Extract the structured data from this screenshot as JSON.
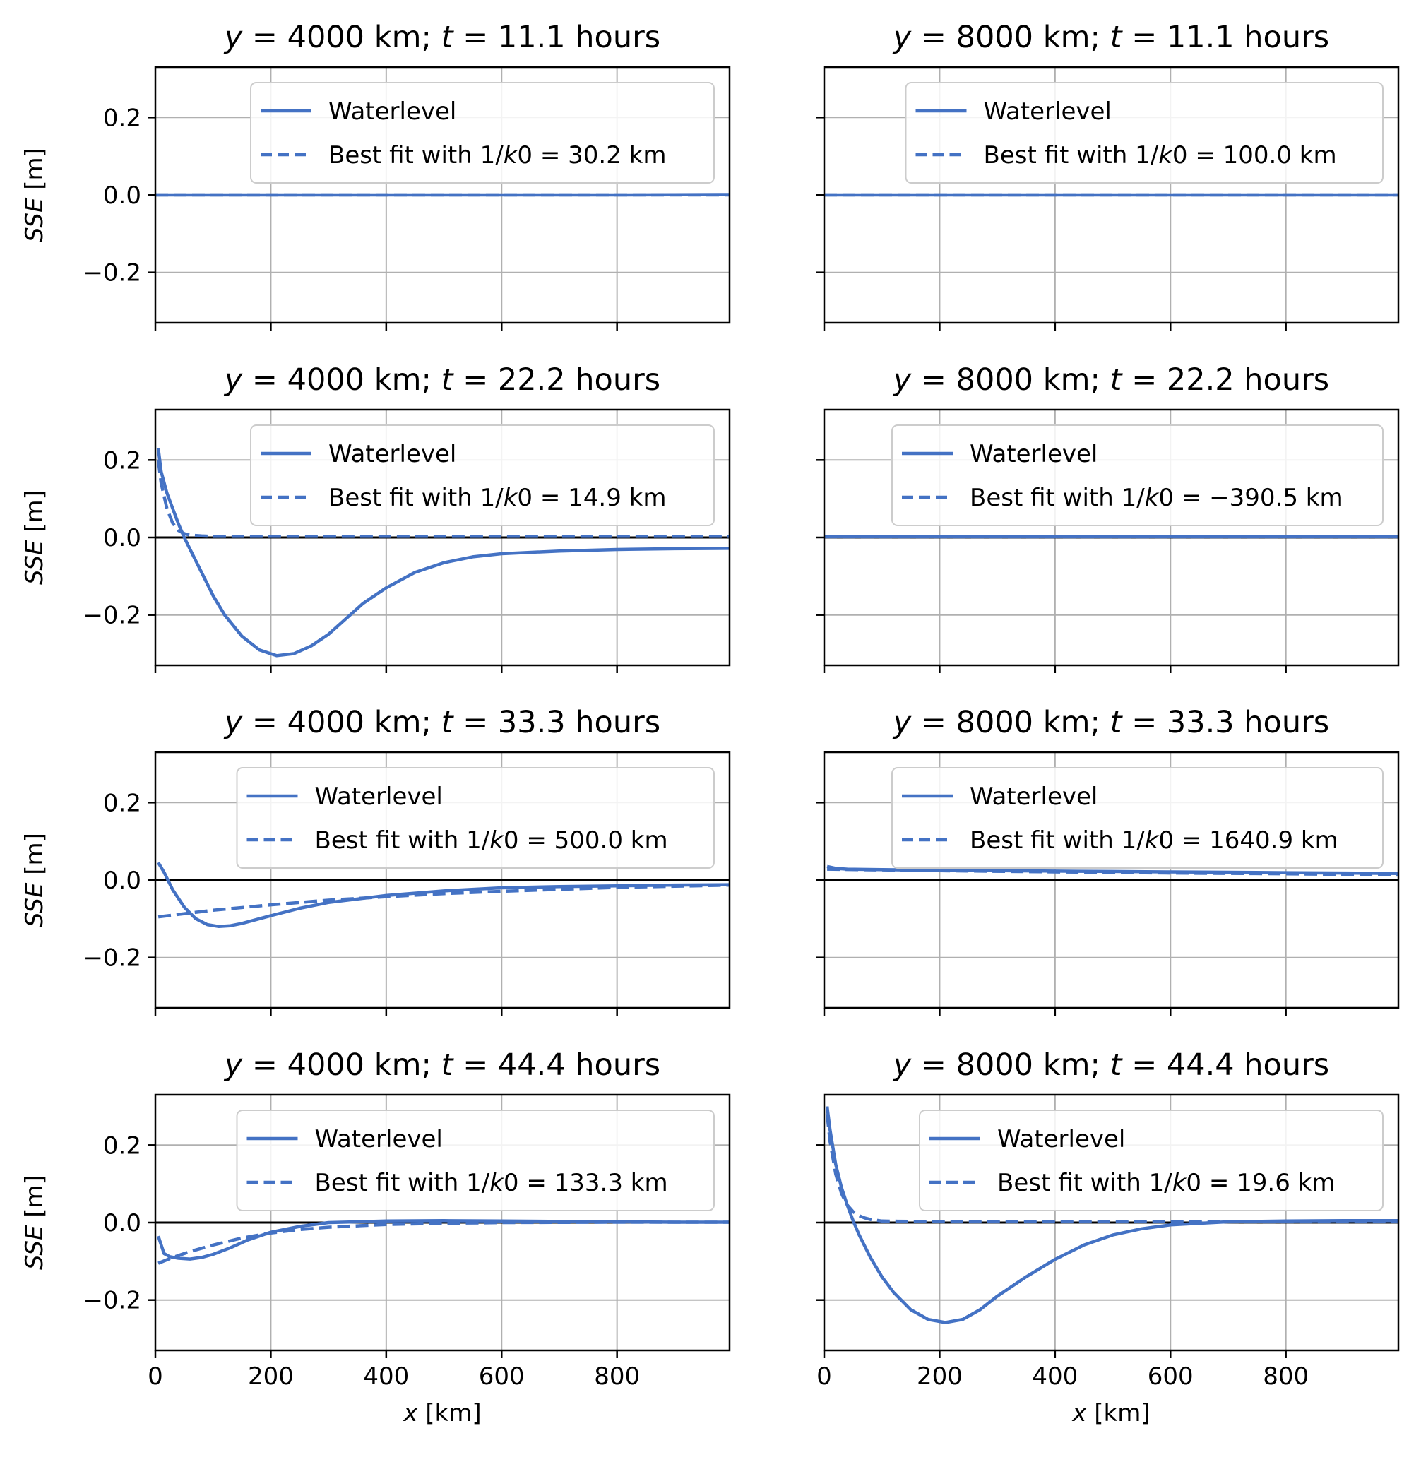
{
  "figure": {
    "xlabel_var": "x",
    "xlabel_unit": "[km]",
    "ylabel_var": "SSE",
    "ylabel_unit": "[m]",
    "line_color": "#4472c4",
    "zero_line_color": "#000000"
  },
  "chart_data": [
    {
      "type": "line",
      "title": "y = 4000 km; t = 11.1 hours",
      "title_parts": [
        "y",
        " = 4000 km; ",
        "t",
        " = 11.1 hours"
      ],
      "xlim": [
        0,
        995
      ],
      "ylim": [
        -0.33,
        0.33
      ],
      "xticks": [
        0,
        200,
        400,
        600,
        800
      ],
      "yticks": [
        0.2,
        0.0,
        -0.2
      ],
      "ytick_labels": [
        "0.2",
        "0.0",
        "−0.2"
      ],
      "grid": true,
      "legend_position": "top-right",
      "show_x_ticklabels": false,
      "show_y_ticklabels": true,
      "series": [
        {
          "name": "Waterlevel",
          "style": "solid",
          "x": [
            0,
            200,
            400,
            600,
            800,
            995
          ],
          "y": [
            0.0,
            0.0,
            0.0,
            0.0,
            0.0,
            0.001
          ]
        },
        {
          "name": "Best fit with 1/k0 = 30.2 km",
          "name_parts": [
            "Best fit with 1/",
            "k",
            "0 = 30.2 km"
          ],
          "style": "dashed",
          "x": [
            0,
            200,
            400,
            600,
            800,
            995
          ],
          "y": [
            0.0,
            0.0,
            0.0,
            0.0,
            0.0,
            0.0
          ]
        }
      ]
    },
    {
      "type": "line",
      "title": "y = 8000 km; t = 11.1 hours",
      "title_parts": [
        "y",
        " = 8000 km; ",
        "t",
        " = 11.1 hours"
      ],
      "xlim": [
        0,
        995
      ],
      "ylim": [
        -0.33,
        0.33
      ],
      "xticks": [
        0,
        200,
        400,
        600,
        800
      ],
      "yticks": [
        0.2,
        0.0,
        -0.2
      ],
      "ytick_labels": [
        "0.2",
        "0.0",
        "−0.2"
      ],
      "grid": true,
      "legend_position": "top-right",
      "show_x_ticklabels": false,
      "show_y_ticklabels": false,
      "series": [
        {
          "name": "Waterlevel",
          "style": "solid",
          "x": [
            0,
            200,
            400,
            600,
            800,
            995
          ],
          "y": [
            0.0,
            0.0,
            0.0,
            0.0,
            0.0,
            0.0
          ]
        },
        {
          "name": "Best fit with 1/k0 = 100.0 km",
          "name_parts": [
            "Best fit with 1/",
            "k",
            "0 = 100.0 km"
          ],
          "style": "dashed",
          "x": [
            0,
            200,
            400,
            600,
            800,
            995
          ],
          "y": [
            0.0,
            0.0,
            0.0,
            0.0,
            0.0,
            0.0
          ]
        }
      ]
    },
    {
      "type": "line",
      "title": "y = 4000 km; t = 22.2 hours",
      "title_parts": [
        "y",
        " = 4000 km; ",
        "t",
        " = 22.2 hours"
      ],
      "xlim": [
        0,
        995
      ],
      "ylim": [
        -0.33,
        0.33
      ],
      "xticks": [
        0,
        200,
        400,
        600,
        800
      ],
      "yticks": [
        0.2,
        0.0,
        -0.2
      ],
      "ytick_labels": [
        "0.2",
        "0.0",
        "−0.2"
      ],
      "grid": true,
      "legend_position": "top-right",
      "show_x_ticklabels": false,
      "show_y_ticklabels": true,
      "series": [
        {
          "name": "Waterlevel",
          "style": "solid",
          "x": [
            5,
            10,
            20,
            30,
            40,
            50,
            60,
            80,
            100,
            120,
            150,
            180,
            210,
            240,
            270,
            300,
            330,
            360,
            400,
            450,
            500,
            550,
            600,
            700,
            800,
            900,
            995
          ],
          "y": [
            0.23,
            0.17,
            0.115,
            0.075,
            0.035,
            0.0,
            -0.03,
            -0.09,
            -0.15,
            -0.2,
            -0.255,
            -0.29,
            -0.305,
            -0.3,
            -0.28,
            -0.25,
            -0.21,
            -0.17,
            -0.13,
            -0.09,
            -0.065,
            -0.05,
            -0.042,
            -0.035,
            -0.031,
            -0.029,
            -0.028
          ]
        },
        {
          "name": "Best fit with 1/k0 = 14.9 km",
          "name_parts": [
            "Best fit with 1/",
            "k",
            "0 = 14.9 km"
          ],
          "style": "dashed",
          "x": [
            5,
            10,
            20,
            30,
            40,
            50,
            60,
            80,
            100,
            200,
            400,
            600,
            800,
            995
          ],
          "y": [
            0.2,
            0.14,
            0.075,
            0.037,
            0.018,
            0.01,
            0.006,
            0.004,
            0.003,
            0.003,
            0.003,
            0.003,
            0.003,
            0.003
          ]
        }
      ]
    },
    {
      "type": "line",
      "title": "y = 8000 km; t = 22.2 hours",
      "title_parts": [
        "y",
        " = 8000 km; ",
        "t",
        " = 22.2 hours"
      ],
      "xlim": [
        0,
        995
      ],
      "ylim": [
        -0.33,
        0.33
      ],
      "xticks": [
        0,
        200,
        400,
        600,
        800
      ],
      "yticks": [
        0.2,
        0.0,
        -0.2
      ],
      "ytick_labels": [
        "0.2",
        "0.0",
        "−0.2"
      ],
      "grid": true,
      "legend_position": "top-right",
      "show_x_ticklabels": false,
      "show_y_ticklabels": false,
      "series": [
        {
          "name": "Waterlevel",
          "style": "solid",
          "x": [
            0,
            200,
            400,
            600,
            800,
            995
          ],
          "y": [
            0.002,
            0.002,
            0.002,
            0.002,
            0.002,
            0.002
          ]
        },
        {
          "name": "Best fit with 1/k0 = −390.5 km",
          "name_parts": [
            "Best fit with 1/",
            "k",
            "0 = −390.5 km"
          ],
          "style": "dashed",
          "x": [
            0,
            200,
            400,
            600,
            800,
            995
          ],
          "y": [
            0.002,
            0.002,
            0.002,
            0.002,
            0.002,
            0.002
          ]
        }
      ]
    },
    {
      "type": "line",
      "title": "y = 4000 km; t = 33.3 hours",
      "title_parts": [
        "y",
        " = 4000 km; ",
        "t",
        " = 33.3 hours"
      ],
      "xlim": [
        0,
        995
      ],
      "ylim": [
        -0.33,
        0.33
      ],
      "xticks": [
        0,
        200,
        400,
        600,
        800
      ],
      "yticks": [
        0.2,
        0.0,
        -0.2
      ],
      "ytick_labels": [
        "0.2",
        "0.0",
        "−0.2"
      ],
      "grid": true,
      "legend_position": "top-right",
      "show_x_ticklabels": false,
      "show_y_ticklabels": true,
      "series": [
        {
          "name": "Waterlevel",
          "style": "solid",
          "x": [
            5,
            15,
            30,
            50,
            70,
            90,
            110,
            130,
            150,
            200,
            250,
            300,
            400,
            500,
            600,
            700,
            800,
            900,
            995
          ],
          "y": [
            0.045,
            0.02,
            -0.025,
            -0.07,
            -0.1,
            -0.115,
            -0.12,
            -0.118,
            -0.112,
            -0.092,
            -0.073,
            -0.058,
            -0.04,
            -0.028,
            -0.02,
            -0.017,
            -0.015,
            -0.013,
            -0.012
          ]
        },
        {
          "name": "Best fit with 1/k0 = 500.0 km",
          "name_parts": [
            "Best fit with 1/",
            "k",
            "0 = 500.0 km"
          ],
          "style": "dashed",
          "x": [
            5,
            100,
            200,
            300,
            400,
            500,
            600,
            700,
            800,
            900,
            995
          ],
          "y": [
            -0.095,
            -0.078,
            -0.064,
            -0.052,
            -0.043,
            -0.035,
            -0.029,
            -0.024,
            -0.019,
            -0.016,
            -0.013
          ]
        }
      ]
    },
    {
      "type": "line",
      "title": "y = 8000 km; t = 33.3 hours",
      "title_parts": [
        "y",
        " = 8000 km; ",
        "t",
        " = 33.3 hours"
      ],
      "xlim": [
        0,
        995
      ],
      "ylim": [
        -0.33,
        0.33
      ],
      "xticks": [
        0,
        200,
        400,
        600,
        800
      ],
      "yticks": [
        0.2,
        0.0,
        -0.2
      ],
      "ytick_labels": [
        "0.2",
        "0.0",
        "−0.2"
      ],
      "grid": true,
      "legend_position": "top-right",
      "show_x_ticklabels": false,
      "show_y_ticklabels": false,
      "series": [
        {
          "name": "Waterlevel",
          "style": "solid",
          "x": [
            5,
            20,
            40,
            100,
            200,
            300,
            400,
            500,
            600,
            700,
            800,
            900,
            995
          ],
          "y": [
            0.035,
            0.03,
            0.028,
            0.027,
            0.025,
            0.024,
            0.023,
            0.022,
            0.021,
            0.02,
            0.019,
            0.018,
            0.017
          ]
        },
        {
          "name": "Best fit with 1/k0 = 1640.9 km",
          "name_parts": [
            "Best fit with 1/",
            "k",
            "0 = 1640.9 km"
          ],
          "style": "dashed",
          "x": [
            5,
            200,
            400,
            600,
            800,
            995
          ],
          "y": [
            0.028,
            0.024,
            0.021,
            0.018,
            0.016,
            0.013
          ]
        }
      ]
    },
    {
      "type": "line",
      "title": "y = 4000 km; t = 44.4 hours",
      "title_parts": [
        "y",
        " = 4000 km; ",
        "t",
        " = 44.4 hours"
      ],
      "xlim": [
        0,
        995
      ],
      "ylim": [
        -0.33,
        0.33
      ],
      "xticks": [
        0,
        200,
        400,
        600,
        800
      ],
      "yticks": [
        0.2,
        0.0,
        -0.2
      ],
      "ytick_labels": [
        "0.2",
        "0.0",
        "−0.2"
      ],
      "grid": true,
      "legend_position": "top-right",
      "show_x_ticklabels": true,
      "show_y_ticklabels": true,
      "series": [
        {
          "name": "Waterlevel",
          "style": "solid",
          "x": [
            5,
            15,
            25,
            40,
            60,
            80,
            100,
            130,
            160,
            200,
            250,
            300,
            400,
            500,
            600,
            700,
            800,
            900,
            995
          ],
          "y": [
            -0.035,
            -0.08,
            -0.088,
            -0.092,
            -0.094,
            -0.09,
            -0.082,
            -0.065,
            -0.045,
            -0.025,
            -0.01,
            0.0,
            0.004,
            0.005,
            0.004,
            0.003,
            0.002,
            0.001,
            0.001
          ]
        },
        {
          "name": "Best fit with 1/k0 = 133.3 km",
          "name_parts": [
            "Best fit with 1/",
            "k",
            "0 = 133.3 km"
          ],
          "style": "dashed",
          "x": [
            5,
            30,
            60,
            100,
            150,
            200,
            250,
            300,
            400,
            500,
            600,
            800,
            995
          ],
          "y": [
            -0.105,
            -0.09,
            -0.075,
            -0.058,
            -0.04,
            -0.027,
            -0.018,
            -0.012,
            -0.005,
            -0.002,
            0.0,
            0.001,
            0.001
          ]
        }
      ]
    },
    {
      "type": "line",
      "title": "y = 8000 km; t = 44.4 hours",
      "title_parts": [
        "y",
        " = 8000 km; ",
        "t",
        " = 44.4 hours"
      ],
      "xlim": [
        0,
        995
      ],
      "ylim": [
        -0.33,
        0.33
      ],
      "xticks": [
        0,
        200,
        400,
        600,
        800
      ],
      "yticks": [
        0.2,
        0.0,
        -0.2
      ],
      "ytick_labels": [
        "0.2",
        "0.0",
        "−0.2"
      ],
      "grid": true,
      "legend_position": "top-right",
      "show_x_ticklabels": true,
      "show_y_ticklabels": false,
      "series": [
        {
          "name": "Waterlevel",
          "style": "solid",
          "x": [
            5,
            10,
            20,
            30,
            40,
            50,
            60,
            80,
            100,
            120,
            150,
            180,
            210,
            240,
            270,
            300,
            350,
            400,
            450,
            500,
            550,
            600,
            700,
            800,
            900,
            995
          ],
          "y": [
            0.3,
            0.24,
            0.15,
            0.09,
            0.045,
            0.005,
            -0.03,
            -0.09,
            -0.14,
            -0.18,
            -0.225,
            -0.25,
            -0.258,
            -0.25,
            -0.225,
            -0.19,
            -0.14,
            -0.095,
            -0.058,
            -0.032,
            -0.016,
            -0.006,
            0.002,
            0.004,
            0.005,
            0.005
          ]
        },
        {
          "name": "Best fit with 1/k0 = 19.6 km",
          "name_parts": [
            "Best fit with 1/",
            "k",
            "0 = 19.6 km"
          ],
          "style": "dashed",
          "x": [
            5,
            10,
            20,
            30,
            40,
            50,
            60,
            70,
            80,
            100,
            200,
            400,
            600,
            800,
            995
          ],
          "y": [
            0.28,
            0.21,
            0.125,
            0.075,
            0.045,
            0.028,
            0.018,
            0.012,
            0.008,
            0.004,
            0.002,
            0.002,
            0.002,
            0.002,
            0.002
          ]
        }
      ]
    }
  ]
}
